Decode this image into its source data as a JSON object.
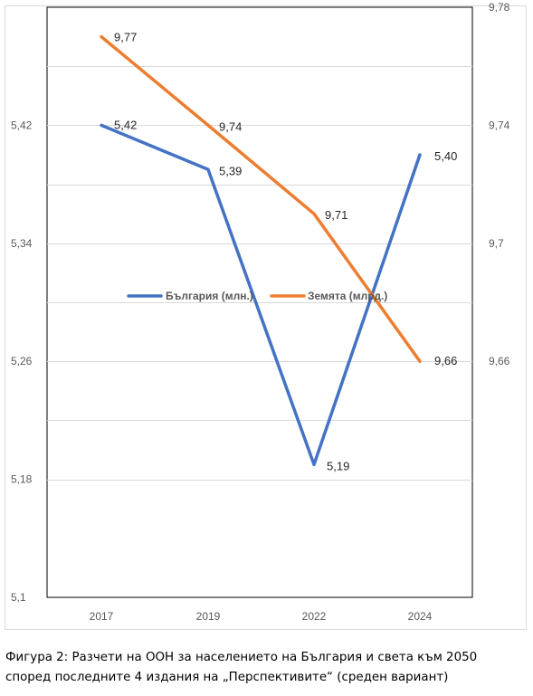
{
  "chart_data": {
    "type": "line",
    "categories": [
      "2017",
      "2019",
      "2022",
      "2024"
    ],
    "series": [
      {
        "name": "България (млн.)",
        "axis": "left",
        "color": "#4472c4",
        "values": [
          5.42,
          5.39,
          5.19,
          5.4
        ],
        "labels": [
          "5,42",
          "5,39",
          "5,19",
          "5,40"
        ]
      },
      {
        "name": "Земята (млрд.)",
        "axis": "right",
        "color": "#ed7d31",
        "values": [
          9.77,
          9.74,
          9.71,
          9.66
        ],
        "labels": [
          "9,77",
          "9,74",
          "9,71",
          "9,66"
        ]
      }
    ],
    "y_left": {
      "ylim": [
        5.1,
        5.5
      ],
      "ticks": [
        5.1,
        5.18,
        5.26,
        5.34,
        5.42
      ],
      "tick_labels": [
        "5,1",
        "5,18",
        "5,26",
        "5,34",
        "5,42"
      ]
    },
    "y_right": {
      "ylim": [
        9.58,
        9.78
      ],
      "ticks": [
        9.66,
        9.7,
        9.74,
        9.78
      ],
      "tick_labels": [
        "9,66",
        "9,7",
        "9,74",
        "9,78"
      ]
    },
    "grid": true,
    "legend_position": "middle"
  },
  "caption": {
    "line1": "Фигура 2: Разчети на ООН за населението на България и света към 2050",
    "line2": "според последните 4 издания на „Перспективите“ (среден вариант)"
  }
}
